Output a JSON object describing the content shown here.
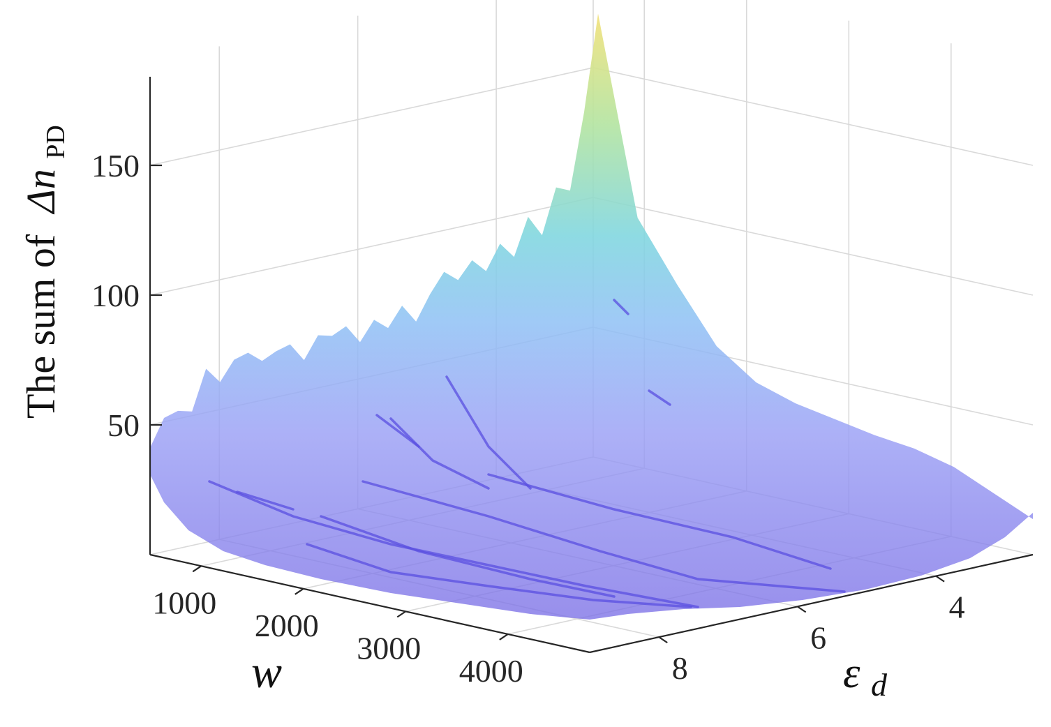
{
  "chart_data": {
    "type": "surface",
    "title": "",
    "zlabel_prefix": "The sum of",
    "zlabel_math": "Δn",
    "zlabel_subscript": "PD",
    "xlabel": "w",
    "ylabel_symbol": "ε",
    "ylabel_subscript": "d",
    "x_ticks": [
      "1000",
      "2000",
      "3000",
      "4000"
    ],
    "y_ticks": [
      "8",
      "6",
      "4"
    ],
    "z_ticks": [
      "50",
      "100",
      "150"
    ],
    "xlim": [
      500,
      4800
    ],
    "ylim": [
      2.6,
      9.0
    ],
    "zlim": [
      0,
      190
    ],
    "grid": true,
    "colormap": [
      "#7b6cf0",
      "#9fa8f7",
      "#7fd3e0",
      "#a6e3a5",
      "#f6e27a"
    ],
    "back_edge_profile": {
      "w_at_max_eps": [
        500,
        600,
        700,
        900,
        1000,
        1100,
        1200,
        1300,
        1400,
        1500,
        1600,
        1700,
        1800,
        1900,
        2000,
        2100,
        2200,
        2300,
        2400,
        2500,
        2600,
        2700,
        2800,
        2900,
        3000,
        3100,
        3200,
        3300,
        3400,
        3500,
        3600,
        3700,
        3800
      ],
      "z": [
        42,
        53,
        55,
        54,
        70,
        64,
        72,
        74,
        70,
        73,
        75,
        68,
        77,
        76,
        79,
        72,
        80,
        76,
        84,
        77,
        87,
        95,
        91,
        98,
        93,
        103,
        97,
        112,
        104,
        122,
        120,
        150,
        188
      ]
    },
    "right_edge_profile": {
      "eps_at_min_w": [
        8.2,
        7.5,
        7.0,
        6.5,
        6.0,
        5.5,
        5.0,
        4.5,
        4.0,
        3.5,
        3.0,
        2.6
      ],
      "z": [
        188,
        110,
        86,
        64,
        52,
        46,
        42,
        38,
        35,
        30,
        22,
        14
      ]
    }
  }
}
